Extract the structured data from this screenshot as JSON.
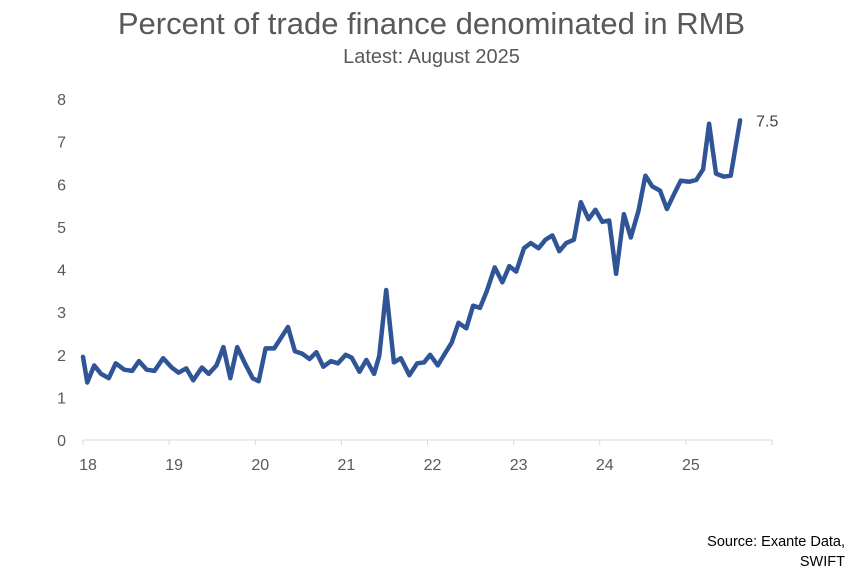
{
  "chart_data": {
    "type": "line",
    "title": "Percent of trade finance denominated in RMB",
    "subtitle": "Latest: August 2025",
    "xlabel": "",
    "ylabel": "",
    "xlim": [
      18.0,
      26.0
    ],
    "ylim": [
      0,
      8
    ],
    "yticks": [
      "0",
      "1",
      "2",
      "3",
      "4",
      "5",
      "6",
      "7",
      "8"
    ],
    "xticks": [
      {
        "value": 18,
        "label": "18"
      },
      {
        "value": 19,
        "label": "19"
      },
      {
        "value": 20,
        "label": "20"
      },
      {
        "value": 21,
        "label": "21"
      },
      {
        "value": 22,
        "label": "22"
      },
      {
        "value": 23,
        "label": "23"
      },
      {
        "value": 24,
        "label": "24"
      },
      {
        "value": 25,
        "label": "25"
      }
    ],
    "grid": false,
    "legend": "none",
    "line_color": "#2F5597",
    "end_label": "7.5",
    "series": [
      {
        "x": [
          18.0,
          18.05,
          18.13,
          18.21,
          18.3,
          18.38,
          18.48,
          18.57,
          18.65,
          18.74,
          18.83,
          18.93,
          19.03,
          19.11,
          19.2,
          19.28,
          19.38,
          19.46,
          19.55,
          19.63,
          19.71,
          19.79,
          19.88,
          19.97,
          20.04,
          20.12,
          20.22,
          20.3,
          20.38,
          20.46,
          20.55,
          20.63,
          20.71,
          20.79,
          20.88,
          20.96,
          21.05,
          21.12,
          21.21,
          21.29,
          21.38,
          21.44,
          21.52,
          21.61,
          21.69,
          21.79,
          21.88,
          21.96,
          22.03,
          22.12,
          22.2,
          22.28,
          22.36,
          22.45,
          22.53,
          22.61,
          22.69,
          22.78,
          22.87,
          22.95,
          23.03,
          23.12,
          23.2,
          23.29,
          23.37,
          23.45,
          23.53,
          23.61,
          23.7,
          23.78,
          23.87,
          23.95,
          24.03,
          24.11,
          24.19,
          24.28,
          24.36,
          24.45,
          24.53,
          24.61,
          24.7,
          24.78,
          24.87,
          24.94,
          25.04,
          25.12,
          25.2,
          25.27,
          25.35,
          25.44,
          25.52,
          25.63
        ],
        "y": [
          1.95,
          1.35,
          1.75,
          1.55,
          1.45,
          1.8,
          1.65,
          1.62,
          1.85,
          1.65,
          1.62,
          1.92,
          1.7,
          1.58,
          1.68,
          1.4,
          1.7,
          1.55,
          1.75,
          2.18,
          1.45,
          2.18,
          1.8,
          1.45,
          1.38,
          2.15,
          2.15,
          2.4,
          2.65,
          2.08,
          2.02,
          1.9,
          2.06,
          1.72,
          1.85,
          1.8,
          2.0,
          1.93,
          1.6,
          1.88,
          1.55,
          1.98,
          3.52,
          1.82,
          1.92,
          1.52,
          1.8,
          1.82,
          2.0,
          1.75,
          2.02,
          2.28,
          2.75,
          2.62,
          3.15,
          3.1,
          3.5,
          4.05,
          3.7,
          4.08,
          3.95,
          4.5,
          4.62,
          4.5,
          4.7,
          4.8,
          4.43,
          4.62,
          4.7,
          5.58,
          5.18,
          5.4,
          5.12,
          5.15,
          3.9,
          5.3,
          4.75,
          5.38,
          6.2,
          5.95,
          5.85,
          5.42,
          5.8,
          6.08,
          6.06,
          6.1,
          6.35,
          7.42,
          6.25,
          6.18,
          6.2,
          7.5
        ]
      }
    ]
  },
  "source_note": [
    "Source: Exante Data,",
    "SWIFT"
  ]
}
